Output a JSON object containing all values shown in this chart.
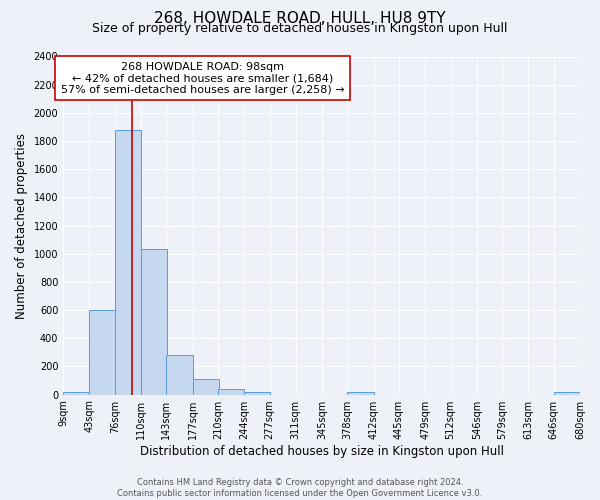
{
  "title": "268, HOWDALE ROAD, HULL, HU8 9TY",
  "subtitle": "Size of property relative to detached houses in Kingston upon Hull",
  "xlabel": "Distribution of detached houses by size in Kingston upon Hull",
  "ylabel": "Number of detached properties",
  "footer_line1": "Contains HM Land Registry data © Crown copyright and database right 2024.",
  "footer_line2": "Contains public sector information licensed under the Open Government Licence v3.0.",
  "bin_edges": [
    9,
    43,
    76,
    110,
    143,
    177,
    210,
    244,
    277,
    311,
    345,
    378,
    412,
    445,
    479,
    512,
    546,
    579,
    613,
    646,
    680
  ],
  "bin_labels": [
    "9sqm",
    "43sqm",
    "76sqm",
    "110sqm",
    "143sqm",
    "177sqm",
    "210sqm",
    "244sqm",
    "277sqm",
    "311sqm",
    "345sqm",
    "378sqm",
    "412sqm",
    "445sqm",
    "479sqm",
    "512sqm",
    "546sqm",
    "579sqm",
    "613sqm",
    "646sqm",
    "680sqm"
  ],
  "counts": [
    20,
    600,
    1880,
    1030,
    280,
    110,
    40,
    20,
    0,
    0,
    0,
    15,
    0,
    0,
    0,
    0,
    0,
    0,
    0,
    15
  ],
  "bar_color": "#c5d8f0",
  "bar_edge_color": "#5b9bd5",
  "property_line_x": 98,
  "property_line_color": "#cc0000",
  "annotation_line1": "268 HOWDALE ROAD: 98sqm",
  "annotation_line2": "← 42% of detached houses are smaller (1,684)",
  "annotation_line3": "57% of semi-detached houses are larger (2,258) →",
  "annotation_box_color": "#ffffff",
  "annotation_box_edge": "#cc0000",
  "ylim": [
    0,
    2400
  ],
  "yticks": [
    0,
    200,
    400,
    600,
    800,
    1000,
    1200,
    1400,
    1600,
    1800,
    2000,
    2200,
    2400
  ],
  "bg_color": "#eef2f8",
  "grid_color": "#ffffff",
  "title_fontsize": 11,
  "subtitle_fontsize": 9,
  "label_fontsize": 8.5,
  "tick_fontsize": 7,
  "footer_fontsize": 6,
  "annotation_fontsize": 8
}
